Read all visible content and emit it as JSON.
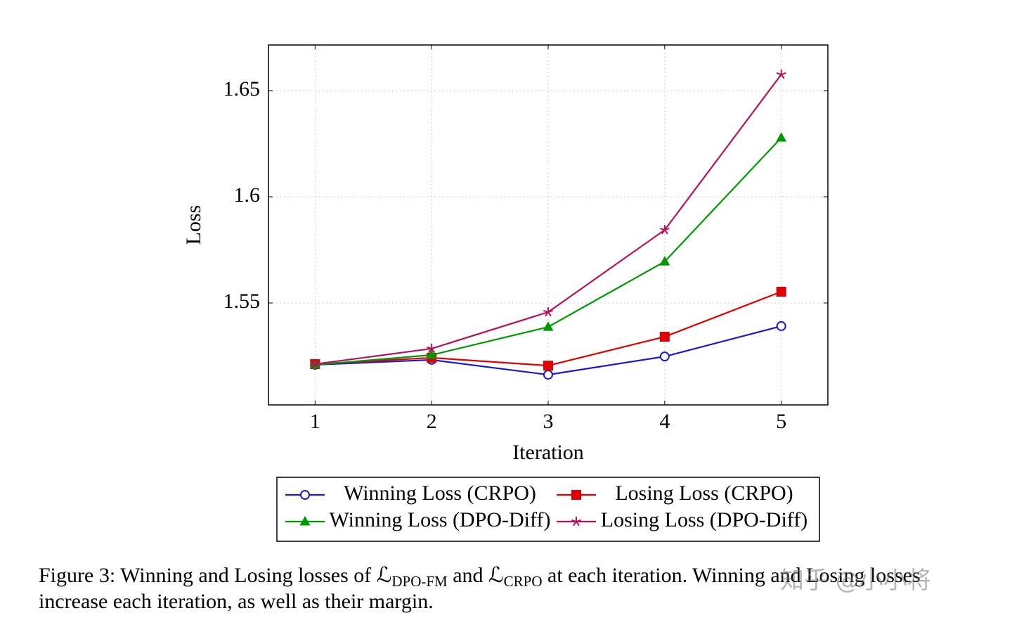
{
  "chart_data": {
    "type": "line",
    "ylabel": "Loss",
    "xlabel": "Iteration",
    "x": [
      1,
      2,
      3,
      4,
      5
    ],
    "xlim": [
      0.6,
      5.4
    ],
    "xticks": [
      1,
      2,
      3,
      4,
      5
    ],
    "ylim": [
      1.502,
      1.6715
    ],
    "yticks": [
      1.55,
      1.6,
      1.65
    ],
    "grid": true,
    "series": [
      {
        "name": "Winning Loss (CRPO)",
        "color": "#1a1acc",
        "marker": "circle",
        "values": [
          1.5209,
          1.5232,
          1.5162,
          1.5248,
          1.5391
        ]
      },
      {
        "name": "Losing Loss (CRPO)",
        "color": "#e00000",
        "marker": "square",
        "values": [
          1.5212,
          1.5242,
          1.5205,
          1.5341,
          1.5553
        ]
      },
      {
        "name": "Winning Loss (DPO-Diff)",
        "color": "#009900",
        "marker": "triangle",
        "values": [
          1.5209,
          1.5255,
          1.5387,
          1.5695,
          1.6278
        ]
      },
      {
        "name": "Losing Loss (DPO-Diff)",
        "color": "#b5125a",
        "marker": "star",
        "values": [
          1.5212,
          1.5285,
          1.5457,
          1.5844,
          1.6576
        ]
      }
    ]
  },
  "caption": {
    "label": "Figure 3:",
    "segments": [
      "Winning and Losing losses of",
      "ℒ",
      "DPO-FM",
      "and",
      "ℒ",
      "CRPO",
      "at each iteration. Winning and Losing losses increase each iteration, as well as their margin."
    ]
  },
  "watermark": "知乎 @小小将"
}
